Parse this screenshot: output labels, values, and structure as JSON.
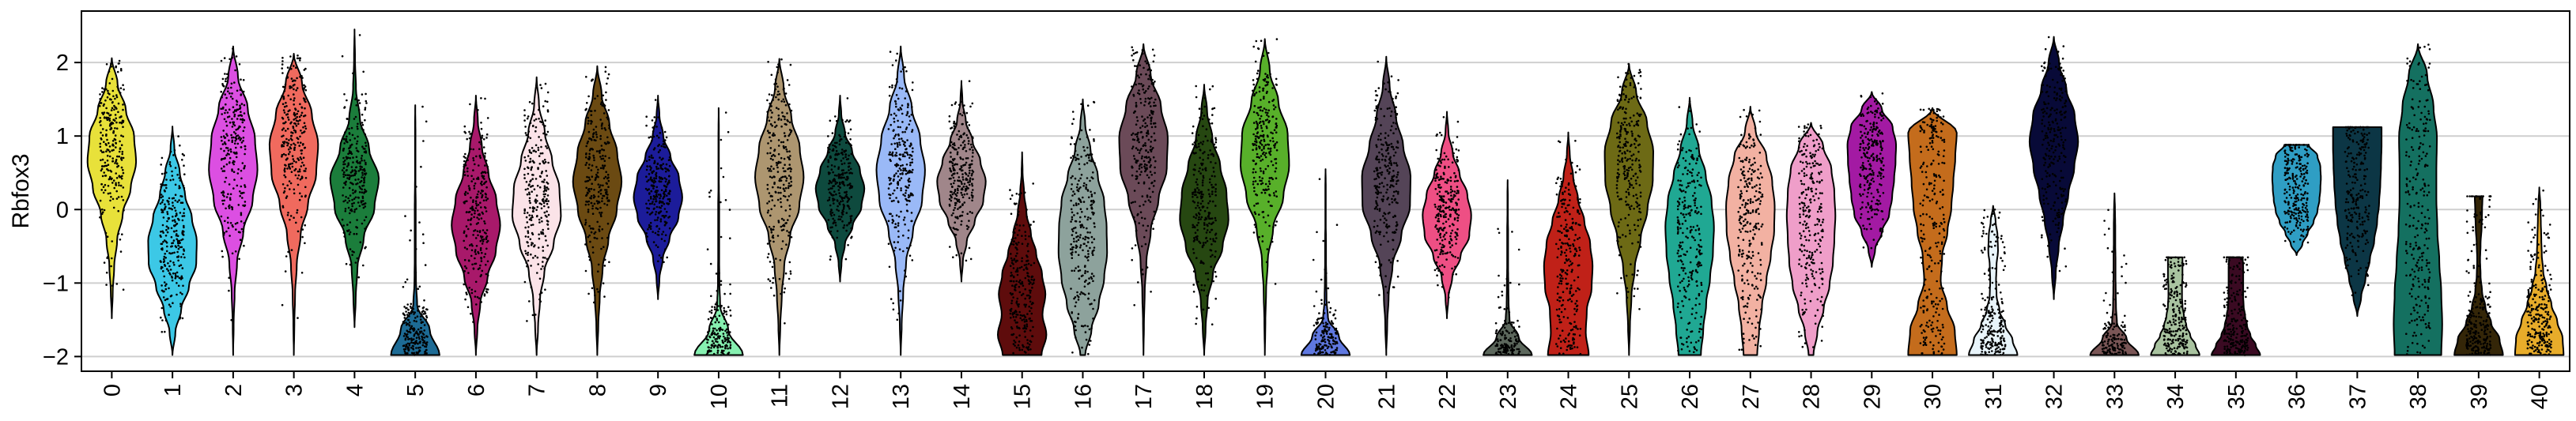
{
  "chart_data": {
    "type": "violin",
    "ylabel": "Rbfox3",
    "xlabel": "",
    "ylim": [
      -2.2,
      2.7
    ],
    "yticks": [
      -2,
      -1,
      0,
      1,
      2
    ],
    "grid": "horizontal",
    "categories": [
      "0",
      "1",
      "2",
      "3",
      "4",
      "5",
      "6",
      "7",
      "8",
      "9",
      "10",
      "11",
      "12",
      "13",
      "14",
      "15",
      "16",
      "17",
      "18",
      "19",
      "20",
      "21",
      "22",
      "23",
      "24",
      "25",
      "26",
      "27",
      "28",
      "29",
      "30",
      "31",
      "32",
      "33",
      "34",
      "35",
      "36",
      "37",
      "38",
      "39",
      "40"
    ],
    "colors": [
      "#e8e13a",
      "#3cc8e6",
      "#dc4fe2",
      "#f06a5e",
      "#1b7d3b",
      "#1d6b95",
      "#a8196a",
      "#fbe3e8",
      "#6b4a12",
      "#1c1c9a",
      "#86f0b0",
      "#ad9670",
      "#0e4a3e",
      "#9ab9f7",
      "#a0868a",
      "#5e0c0c",
      "#8da29c",
      "#6b4a58",
      "#264711",
      "#58b02a",
      "#5f78e0",
      "#544457",
      "#ee4f84",
      "#5c675c",
      "#c02118",
      "#6d6a15",
      "#20a893",
      "#f2b1a2",
      "#ef9ec9",
      "#a31aa3",
      "#c46c1c",
      "#e8f4fa",
      "#080a38",
      "#7a5656",
      "#a9c3a0",
      "#3a0a22",
      "#2f9ec4",
      "#0c3645",
      "#147060",
      "#342608",
      "#e8ac2a"
    ],
    "violins": [
      {
        "y_min": -1.48,
        "y_max": 2.06,
        "widths": [
          0.0,
          0.04,
          0.1,
          0.22,
          0.45,
          0.78,
          1.0,
          0.92,
          0.58,
          0.24,
          0.0
        ]
      },
      {
        "y_min": -1.98,
        "y_max": 1.13,
        "widths": [
          0.0,
          0.12,
          0.36,
          0.68,
          0.98,
          1.0,
          0.8,
          0.52,
          0.3,
          0.08,
          0.0
        ]
      },
      {
        "y_min": -1.98,
        "y_max": 2.22,
        "widths": [
          0.0,
          0.02,
          0.06,
          0.16,
          0.42,
          0.8,
          1.0,
          0.9,
          0.6,
          0.2,
          0.0
        ]
      },
      {
        "y_min": -1.98,
        "y_max": 2.12,
        "widths": [
          0.0,
          0.02,
          0.05,
          0.12,
          0.28,
          0.58,
          0.92,
          1.0,
          0.74,
          0.34,
          0.0
        ]
      },
      {
        "y_min": -1.6,
        "y_max": 2.45,
        "widths": [
          0.0,
          0.05,
          0.12,
          0.38,
          0.82,
          1.0,
          0.6,
          0.22,
          0.06,
          0.02,
          0.0
        ]
      },
      {
        "y_min": -1.98,
        "y_max": 1.42,
        "widths": [
          1.0,
          0.6,
          0.08,
          0.03,
          0.02,
          0.02,
          0.02,
          0.01,
          0.01,
          0.01,
          0.0
        ]
      },
      {
        "y_min": -1.98,
        "y_max": 1.55,
        "widths": [
          0.0,
          0.06,
          0.18,
          0.48,
          0.82,
          1.0,
          0.84,
          0.52,
          0.25,
          0.08,
          0.0
        ]
      },
      {
        "y_min": -1.98,
        "y_max": 1.8,
        "widths": [
          0.0,
          0.06,
          0.14,
          0.32,
          0.7,
          1.0,
          0.94,
          0.64,
          0.34,
          0.1,
          0.0
        ]
      },
      {
        "y_min": -1.98,
        "y_max": 1.95,
        "widths": [
          0.0,
          0.04,
          0.1,
          0.22,
          0.46,
          0.8,
          1.0,
          0.82,
          0.5,
          0.18,
          0.0
        ]
      },
      {
        "y_min": -1.22,
        "y_max": 1.55,
        "widths": [
          0.0,
          0.06,
          0.2,
          0.48,
          0.84,
          1.0,
          0.86,
          0.52,
          0.22,
          0.06,
          0.0
        ]
      },
      {
        "y_min": -1.98,
        "y_max": 1.38,
        "widths": [
          1.0,
          0.4,
          0.06,
          0.03,
          0.02,
          0.02,
          0.02,
          0.01,
          0.01,
          0.01,
          0.0
        ]
      },
      {
        "y_min": -1.98,
        "y_max": 2.05,
        "widths": [
          0.0,
          0.04,
          0.1,
          0.2,
          0.44,
          0.82,
          1.0,
          0.84,
          0.5,
          0.18,
          0.0
        ]
      },
      {
        "y_min": -0.98,
        "y_max": 1.55,
        "widths": [
          0.0,
          0.06,
          0.2,
          0.52,
          0.88,
          1.0,
          0.82,
          0.5,
          0.2,
          0.05,
          0.0
        ]
      },
      {
        "y_min": -1.98,
        "y_max": 2.22,
        "widths": [
          0.0,
          0.04,
          0.1,
          0.22,
          0.5,
          0.88,
          1.0,
          0.8,
          0.46,
          0.14,
          0.0
        ]
      },
      {
        "y_min": -0.98,
        "y_max": 1.75,
        "widths": [
          0.0,
          0.06,
          0.22,
          0.55,
          0.9,
          1.0,
          0.78,
          0.46,
          0.18,
          0.04,
          0.0
        ]
      },
      {
        "y_min": -1.98,
        "y_max": 0.78,
        "widths": [
          0.8,
          1.0,
          0.84,
          0.96,
          0.82,
          0.58,
          0.36,
          0.18,
          0.08,
          0.02,
          0.0
        ]
      },
      {
        "y_min": -1.98,
        "y_max": 1.5,
        "widths": [
          0.1,
          0.36,
          0.66,
          0.88,
          1.0,
          0.98,
          0.88,
          0.62,
          0.32,
          0.1,
          0.0
        ]
      },
      {
        "y_min": -1.98,
        "y_max": 2.25,
        "widths": [
          0.0,
          0.02,
          0.05,
          0.12,
          0.3,
          0.62,
          0.96,
          1.0,
          0.72,
          0.3,
          0.0
        ]
      },
      {
        "y_min": -1.98,
        "y_max": 1.7,
        "widths": [
          0.0,
          0.06,
          0.14,
          0.36,
          0.76,
          1.0,
          0.92,
          0.66,
          0.34,
          0.12,
          0.0
        ]
      },
      {
        "y_min": -1.98,
        "y_max": 2.32,
        "widths": [
          0.0,
          0.02,
          0.05,
          0.12,
          0.34,
          0.76,
          1.0,
          0.94,
          0.56,
          0.2,
          0.0
        ]
      },
      {
        "y_min": -1.98,
        "y_max": 0.55,
        "widths": [
          1.0,
          0.55,
          0.1,
          0.04,
          0.03,
          0.02,
          0.02,
          0.01,
          0.01,
          0.01,
          0.0
        ]
      },
      {
        "y_min": -1.98,
        "y_max": 2.08,
        "widths": [
          0.0,
          0.04,
          0.1,
          0.26,
          0.62,
          0.98,
          1.0,
          0.7,
          0.4,
          0.14,
          0.0
        ]
      },
      {
        "y_min": -1.48,
        "y_max": 1.33,
        "widths": [
          0.0,
          0.06,
          0.22,
          0.56,
          0.92,
          1.0,
          0.84,
          0.52,
          0.24,
          0.06,
          0.0
        ]
      },
      {
        "y_min": -1.98,
        "y_max": 0.4,
        "widths": [
          1.0,
          0.46,
          0.08,
          0.04,
          0.03,
          0.02,
          0.02,
          0.02,
          0.01,
          0.01,
          0.0
        ]
      },
      {
        "y_min": -1.98,
        "y_max": 1.05,
        "widths": [
          0.84,
          0.72,
          0.76,
          0.96,
          1.0,
          0.9,
          0.66,
          0.4,
          0.2,
          0.06,
          0.0
        ]
      },
      {
        "y_min": -1.98,
        "y_max": 1.98,
        "widths": [
          0.0,
          0.04,
          0.1,
          0.24,
          0.48,
          0.76,
          0.98,
          1.0,
          0.74,
          0.3,
          0.0
        ]
      },
      {
        "y_min": -1.98,
        "y_max": 1.52,
        "widths": [
          0.46,
          0.56,
          0.68,
          0.84,
          0.96,
          1.0,
          0.9,
          0.66,
          0.38,
          0.12,
          0.0
        ]
      },
      {
        "y_min": -1.98,
        "y_max": 1.4,
        "widths": [
          0.28,
          0.36,
          0.48,
          0.66,
          0.84,
          0.98,
          1.0,
          0.9,
          0.66,
          0.22,
          0.0
        ]
      },
      {
        "y_min": -1.98,
        "y_max": 1.18,
        "widths": [
          0.1,
          0.26,
          0.52,
          0.76,
          0.9,
          0.96,
          1.0,
          0.96,
          0.84,
          0.5,
          0.0
        ]
      },
      {
        "y_min": -0.78,
        "y_max": 1.6,
        "widths": [
          0.0,
          0.14,
          0.42,
          0.72,
          0.84,
          0.92,
          0.98,
          1.0,
          0.86,
          0.42,
          0.0
        ]
      },
      {
        "y_min": -1.98,
        "y_max": 1.38,
        "widths": [
          1.0,
          0.92,
          0.6,
          0.34,
          0.4,
          0.62,
          0.78,
          0.86,
          0.94,
          1.0,
          0.0
        ]
      },
      {
        "y_min": -1.98,
        "y_max": 0.05,
        "widths": [
          1.0,
          0.8,
          0.5,
          0.26,
          0.14,
          0.12,
          0.14,
          0.2,
          0.18,
          0.1,
          0.0
        ]
      },
      {
        "y_min": -1.22,
        "y_max": 2.35,
        "widths": [
          0.0,
          0.08,
          0.2,
          0.38,
          0.6,
          0.84,
          1.0,
          0.86,
          0.52,
          0.22,
          0.0
        ]
      },
      {
        "y_min": -1.98,
        "y_max": 0.22,
        "widths": [
          1.0,
          0.5,
          0.1,
          0.06,
          0.05,
          0.04,
          0.04,
          0.03,
          0.03,
          0.02,
          0.0
        ]
      },
      {
        "y_min": -1.98,
        "y_max": -0.65,
        "widths": [
          1.0,
          0.84,
          0.62,
          0.46,
          0.36,
          0.3,
          0.28,
          0.28,
          0.3,
          0.3,
          0.3
        ]
      },
      {
        "y_min": -1.98,
        "y_max": -0.65,
        "widths": [
          1.0,
          0.82,
          0.6,
          0.46,
          0.38,
          0.32,
          0.3,
          0.3,
          0.3,
          0.3,
          0.28
        ]
      },
      {
        "y_min": -0.62,
        "y_max": 0.88,
        "widths": [
          0.0,
          0.24,
          0.46,
          0.7,
          0.86,
          0.94,
          0.98,
          1.0,
          0.98,
          0.86,
          0.5
        ]
      },
      {
        "y_min": -1.45,
        "y_max": 1.12,
        "widths": [
          0.0,
          0.16,
          0.34,
          0.52,
          0.7,
          0.82,
          0.9,
          0.95,
          0.98,
          1.0,
          1.0
        ]
      },
      {
        "y_min": -1.98,
        "y_max": 2.25,
        "widths": [
          0.96,
          1.0,
          0.96,
          0.88,
          0.8,
          0.76,
          0.76,
          0.78,
          0.64,
          0.38,
          0.0
        ]
      },
      {
        "y_min": -1.98,
        "y_max": 0.18,
        "widths": [
          1.0,
          0.86,
          0.52,
          0.28,
          0.14,
          0.08,
          0.06,
          0.08,
          0.12,
          0.14,
          0.16
        ]
      },
      {
        "y_min": -1.98,
        "y_max": 0.3,
        "widths": [
          1.0,
          0.96,
          0.74,
          0.5,
          0.3,
          0.16,
          0.1,
          0.08,
          0.06,
          0.04,
          0.0
        ]
      }
    ]
  }
}
